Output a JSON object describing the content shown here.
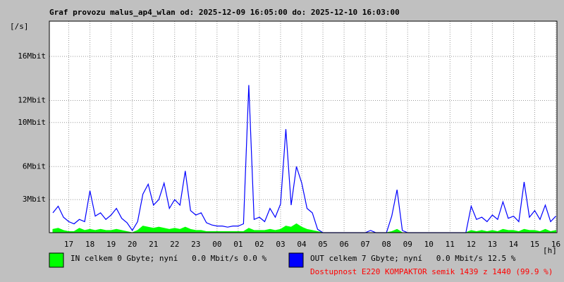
{
  "chart_data": {
    "type": "line",
    "title": "Graf provozu malus_ap4_wlan od: 2025-12-09 16:05:00 do: 2025-12-10 16:03:00",
    "ylabel": "[/s]",
    "xlabel": "[h]",
    "footnote": "Dostupnost E220 KOMPAKTOR semik 1439 z 1440 (99.9 %)",
    "grid": true,
    "xlim": [
      16.0833,
      40.05
    ],
    "xticks": [
      17,
      18,
      19,
      20,
      21,
      22,
      23,
      {
        "value": 24,
        "label": "00"
      },
      {
        "value": 25,
        "label": "01"
      },
      {
        "value": 26,
        "label": "02"
      },
      {
        "value": 27,
        "label": "03"
      },
      {
        "value": 28,
        "label": "04"
      },
      {
        "value": 29,
        "label": "05"
      },
      {
        "value": 30,
        "label": "06"
      },
      {
        "value": 31,
        "label": "07"
      },
      {
        "value": 32,
        "label": "08"
      },
      {
        "value": 33,
        "label": "09"
      },
      {
        "value": 34,
        "label": "10"
      },
      {
        "value": 35,
        "label": "11"
      },
      {
        "value": 36,
        "label": "12"
      },
      {
        "value": 37,
        "label": "13"
      },
      {
        "value": 38,
        "label": "14"
      },
      {
        "value": 39,
        "label": "15"
      },
      {
        "value": 40,
        "label": "16"
      }
    ],
    "ylim": [
      0,
      19.2
    ],
    "yticks": [
      {
        "value": 3,
        "label": "3Mbit"
      },
      {
        "value": 6,
        "label": "6Mbit"
      },
      {
        "value": 10,
        "label": "10Mbit"
      },
      {
        "value": 12,
        "label": "12Mbit"
      },
      {
        "value": 16,
        "label": "16Mbit"
      }
    ],
    "x": [
      16.25,
      16.5,
      16.75,
      17,
      17.25,
      17.5,
      17.75,
      18,
      18.25,
      18.5,
      18.75,
      19,
      19.25,
      19.5,
      19.75,
      20,
      20.25,
      20.5,
      20.75,
      21,
      21.25,
      21.5,
      21.75,
      22,
      22.25,
      22.5,
      22.75,
      23,
      23.25,
      23.5,
      23.75,
      24,
      24.25,
      24.5,
      24.75,
      25,
      25.25,
      25.5,
      25.75,
      26,
      26.25,
      26.5,
      26.75,
      27,
      27.25,
      27.5,
      27.75,
      28,
      28.25,
      28.5,
      28.75,
      29,
      29.25,
      29.5,
      29.75,
      30,
      30.25,
      30.5,
      30.75,
      31,
      31.25,
      31.5,
      31.75,
      32,
      32.25,
      32.5,
      32.75,
      33,
      33.25,
      33.5,
      33.75,
      34,
      34.25,
      34.5,
      34.75,
      35,
      35.25,
      35.5,
      35.75,
      36,
      36.25,
      36.5,
      36.75,
      37,
      37.25,
      37.5,
      37.75,
      38,
      38.25,
      38.5,
      38.75,
      39,
      39.25,
      39.5,
      39.75,
      40
    ],
    "series": [
      {
        "name": "IN celkem 0 Gbyte; nyní   0.0 Mbit/s 0.0 %",
        "color": "#00ff00",
        "style": "area",
        "values": [
          0.3,
          0.4,
          0.2,
          0.1,
          0.1,
          0.4,
          0.2,
          0.3,
          0.2,
          0.3,
          0.2,
          0.2,
          0.3,
          0.2,
          0.1,
          0,
          0.2,
          0.6,
          0.5,
          0.4,
          0.5,
          0.4,
          0.3,
          0.4,
          0.3,
          0.5,
          0.3,
          0.2,
          0.2,
          0.1,
          0.1,
          0.1,
          0.1,
          0.1,
          0.1,
          0.1,
          0.1,
          0.4,
          0.2,
          0.2,
          0.2,
          0.3,
          0.2,
          0.3,
          0.6,
          0.5,
          0.8,
          0.5,
          0.3,
          0.2,
          0.1,
          0,
          0,
          0,
          0,
          0,
          0,
          0,
          0,
          0,
          0,
          0,
          0,
          0,
          0.1,
          0.3,
          0,
          0,
          0,
          0,
          0,
          0,
          0,
          0,
          0,
          0,
          0,
          0,
          0,
          0.2,
          0.1,
          0.2,
          0.1,
          0.2,
          0.1,
          0.3,
          0.2,
          0.2,
          0.1,
          0.3,
          0.2,
          0.2,
          0.1,
          0.3,
          0.1,
          0.2
        ]
      },
      {
        "name": "OUT celkem 7 Gbyte; nyní   0.0 Mbit/s 12.5 %",
        "color": "#0000ff",
        "style": "line",
        "values": [
          1.8,
          2.4,
          1.4,
          1.0,
          0.8,
          1.2,
          1.0,
          3.8,
          1.5,
          1.8,
          1.2,
          1.6,
          2.2,
          1.3,
          0.9,
          0.2,
          1.0,
          3.5,
          4.4,
          2.5,
          3.0,
          4.5,
          2.2,
          3.0,
          2.5,
          5.6,
          2.0,
          1.6,
          1.8,
          0.9,
          0.7,
          0.6,
          0.6,
          0.5,
          0.6,
          0.6,
          0.8,
          13.4,
          1.2,
          1.4,
          1.0,
          2.2,
          1.4,
          2.6,
          9.4,
          2.5,
          6.0,
          4.5,
          2.2,
          1.8,
          0.3,
          0,
          0,
          0,
          0,
          0,
          0,
          0,
          0,
          0,
          0.2,
          0,
          0,
          0,
          1.5,
          3.9,
          0.2,
          0,
          0,
          0,
          0,
          0,
          0,
          0,
          0,
          0,
          0,
          0,
          0,
          2.4,
          1.2,
          1.4,
          1.0,
          1.6,
          1.2,
          2.8,
          1.3,
          1.5,
          1.0,
          4.6,
          1.4,
          2.0,
          1.2,
          2.5,
          1.0,
          1.5
        ]
      }
    ]
  }
}
